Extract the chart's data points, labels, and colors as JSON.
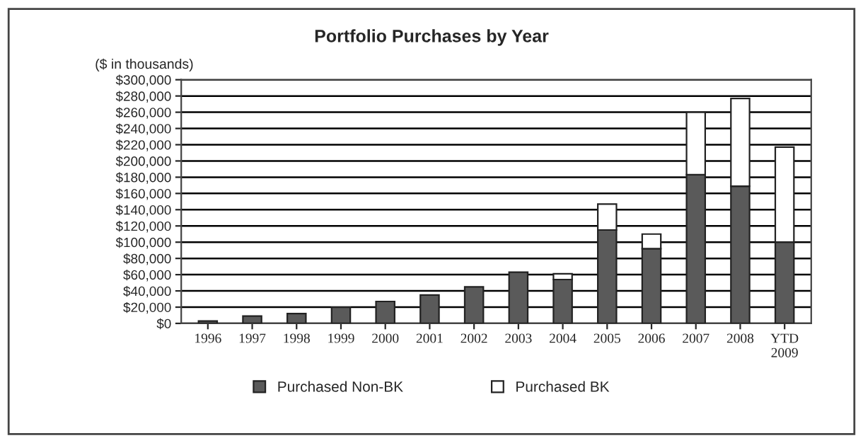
{
  "chart_data": {
    "type": "bar",
    "title": "Portfolio Purchases by Year",
    "ylabel": "($ in thousands)",
    "categories": [
      "1996",
      "1997",
      "1998",
      "1999",
      "2000",
      "2001",
      "2002",
      "2003",
      "2004",
      "2005",
      "2006",
      "2007",
      "2008",
      "YTD\n2009"
    ],
    "stacked": true,
    "series": [
      {
        "name": "Purchased Non-BK",
        "color": "#5a5a5a",
        "values": [
          3000,
          9000,
          12000,
          20000,
          27000,
          35000,
          45000,
          63000,
          54000,
          115000,
          92000,
          183000,
          169000,
          100000
        ]
      },
      {
        "name": "Purchased BK",
        "color": "#ffffff",
        "values": [
          null,
          null,
          null,
          null,
          null,
          null,
          null,
          null,
          7000,
          32000,
          18000,
          77000,
          108000,
          117000
        ]
      }
    ],
    "ylim": [
      0,
      300000
    ],
    "yticks": [
      {
        "value": 0,
        "label": "$0"
      },
      {
        "value": 20000,
        "label": "$20,000"
      },
      {
        "value": 40000,
        "label": "$40,000"
      },
      {
        "value": 60000,
        "label": "$60,000"
      },
      {
        "value": 80000,
        "label": "$80,000"
      },
      {
        "value": 100000,
        "label": "$100,000"
      },
      {
        "value": 120000,
        "label": "$120,000"
      },
      {
        "value": 140000,
        "label": "$140,000"
      },
      {
        "value": 160000,
        "label": "$160,000"
      },
      {
        "value": 180000,
        "label": "$180,000"
      },
      {
        "value": 200000,
        "label": "$200,000"
      },
      {
        "value": 220000,
        "label": "$220,000"
      },
      {
        "value": 240000,
        "label": "$240,000"
      },
      {
        "value": 260000,
        "label": "$260,000"
      },
      {
        "value": 280000,
        "label": "$280,000"
      },
      {
        "value": 300000,
        "label": "$300,000"
      }
    ],
    "grid": "y",
    "legend": "bottom"
  }
}
